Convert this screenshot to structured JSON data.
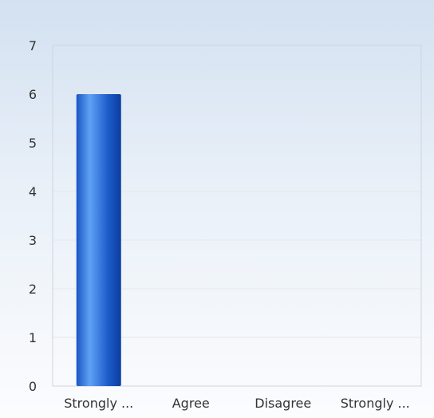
{
  "chart_data": {
    "type": "bar",
    "title": "",
    "xlabel": "",
    "ylabel": "",
    "categories": [
      "Strongly ...",
      "Agree",
      "Disagree",
      "Strongly ..."
    ],
    "values": [
      6,
      0,
      0,
      0
    ],
    "ylim": [
      0,
      7
    ],
    "yticks": [
      "0",
      "1",
      "2",
      "3",
      "4",
      "5",
      "6",
      "7"
    ],
    "grid": true,
    "legend": "none",
    "colors": {
      "bar_dark": "#0a3d9e",
      "bar_light": "#5ea2f4",
      "grid": "#e3e8ee",
      "axis": "#cfd5dd",
      "text": "#333333"
    }
  }
}
